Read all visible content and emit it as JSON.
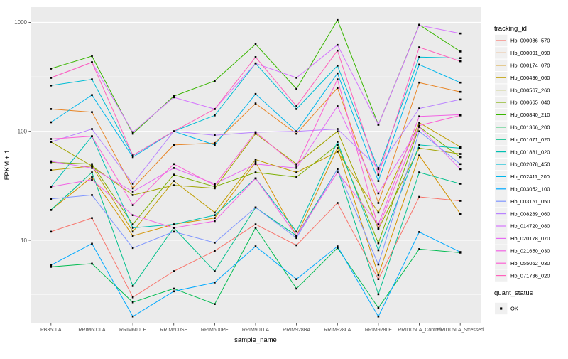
{
  "figure": {
    "background": "#FFFFFF",
    "panel_background": "#EBEBEB",
    "grid_major_color": "#FFFFFF",
    "grid_minor_color": "#FFFFFF",
    "tick_mark_color": "#333333",
    "tick_label_color": "#4D4D4D",
    "title_color": "#000000",
    "point_color": "#000000",
    "legend_key_background": "#F0F0F0"
  },
  "axes": {
    "x_title": "sample_name",
    "y_title": "FPKM + 1",
    "y_tick_labels": [
      "10",
      "100",
      "1000"
    ],
    "y_ticks": [
      10,
      100,
      1000
    ],
    "y_minor_ticks": [
      3.162,
      31.62,
      316.2
    ]
  },
  "legend": {
    "tracking_title": "tracking_id",
    "quant_title": "quant_status",
    "quant_items": [
      {
        "label": "OK",
        "symbol": "black-square-point"
      }
    ]
  },
  "chart_data": {
    "type": "line",
    "title": "",
    "xlabel": "sample_name",
    "ylabel": "FPKM + 1",
    "y_scale": "log10",
    "ylim": [
      1.7,
      1370
    ],
    "grid": true,
    "legend_position": "right",
    "marker": "black-square",
    "categories": [
      "PB350LA",
      "RRIM600LA",
      "RRIM600LE",
      "RRIM600SE",
      "RRIM600PE",
      "RRIM901LA",
      "RRIM928BA",
      "RRIM928LA",
      "RRIM928LE",
      "RRII105LA_Control",
      "RRII105LA_Stressed"
    ],
    "series": [
      {
        "name": "Hb_000086_570",
        "color": "#F8766D",
        "values": [
          12,
          16,
          3,
          5.2,
          8,
          14,
          9,
          22,
          4.4,
          25,
          23
        ]
      },
      {
        "name": "Hb_000091_090",
        "color": "#E88526",
        "values": [
          160,
          150,
          30,
          75,
          78,
          180,
          95,
          250,
          22,
          280,
          230
        ]
      },
      {
        "name": "Hb_000174_070",
        "color": "#D39200",
        "values": [
          19,
          38,
          11,
          14,
          16,
          52,
          11,
          70,
          4.8,
          60,
          17.5
        ]
      },
      {
        "name": "Hb_000496_060",
        "color": "#BF9D00",
        "values": [
          44,
          48,
          12,
          35,
          18,
          55,
          42,
          65,
          18,
          120,
          72
        ]
      },
      {
        "name": "Hb_000567_260",
        "color": "#A2A400",
        "values": [
          80,
          48,
          26,
          32,
          30,
          95,
          50,
          100,
          12.7,
          70,
          62
        ]
      },
      {
        "name": "Hb_000665_040",
        "color": "#7CAE00",
        "values": [
          52,
          50,
          14,
          40,
          31,
          42,
          38,
          75,
          9.4,
          110,
          58
        ]
      },
      {
        "name": "Hb_000840_210",
        "color": "#39B600",
        "values": [
          376,
          490,
          95,
          210,
          290,
          630,
          245,
          1050,
          115,
          950,
          540
        ]
      },
      {
        "name": "Hb_001366_200",
        "color": "#00BC51",
        "values": [
          5.7,
          6.1,
          2.7,
          3.6,
          2.6,
          13,
          3.6,
          8.5,
          2.4,
          8.3,
          7.7
        ]
      },
      {
        "name": "Hb_001671_020",
        "color": "#00C08B",
        "values": [
          19,
          42,
          3.8,
          13,
          5.2,
          20,
          11,
          45,
          3.2,
          42,
          33
        ]
      },
      {
        "name": "Hb_001881_020",
        "color": "#00C0B2",
        "values": [
          31,
          90,
          13,
          14,
          17,
          37,
          12,
          80,
          8.1,
          75,
          70
        ]
      },
      {
        "name": "Hb_002078_450",
        "color": "#00BDD4",
        "values": [
          263,
          300,
          60,
          100,
          140,
          420,
          160,
          400,
          45,
          480,
          470
        ]
      },
      {
        "name": "Hb_002411_200",
        "color": "#00B6EB",
        "values": [
          121,
          215,
          58,
          100,
          75,
          220,
          100,
          340,
          35,
          410,
          280
        ]
      },
      {
        "name": "Hb_003052_100",
        "color": "#00A9FF",
        "values": [
          5.9,
          9.3,
          2.0,
          3.4,
          4.1,
          8.8,
          4.4,
          8.8,
          2.0,
          11.9,
          7.8
        ]
      },
      {
        "name": "Hb_003151_050",
        "color": "#7F96FF",
        "values": [
          24,
          26,
          8.5,
          12,
          9.5,
          20,
          10.5,
          45,
          6.0,
          100,
          50
        ]
      },
      {
        "name": "Hb_008289_060",
        "color": "#B983FF",
        "values": [
          80,
          105,
          33,
          100,
          92,
          98,
          100,
          105,
          46,
          162,
          196
        ]
      },
      {
        "name": "Hb_014720_080",
        "color": "#D575FE",
        "values": [
          310,
          430,
          98,
          205,
          160,
          420,
          310,
          620,
          115,
          940,
          790
        ]
      },
      {
        "name": "Hb_020178_070",
        "color": "#E76BF3",
        "values": [
          53,
          46,
          28,
          46,
          33,
          50,
          46,
          170,
          27,
          110,
          45
        ]
      },
      {
        "name": "Hb_021650_030",
        "color": "#F264E4",
        "values": [
          31,
          36,
          17,
          13,
          15,
          37,
          11,
          42,
          14,
          137,
          142
        ]
      },
      {
        "name": "Hb_055062_030",
        "color": "#FC61D5",
        "values": [
          85,
          90,
          21,
          50,
          32,
          98,
          48,
          300,
          13,
          113,
          140
        ]
      },
      {
        "name": "Hb_071736_020",
        "color": "#FF62BC",
        "values": [
          310,
          430,
          60,
          100,
          160,
          480,
          170,
          550,
          40,
          590,
          440
        ]
      }
    ]
  }
}
